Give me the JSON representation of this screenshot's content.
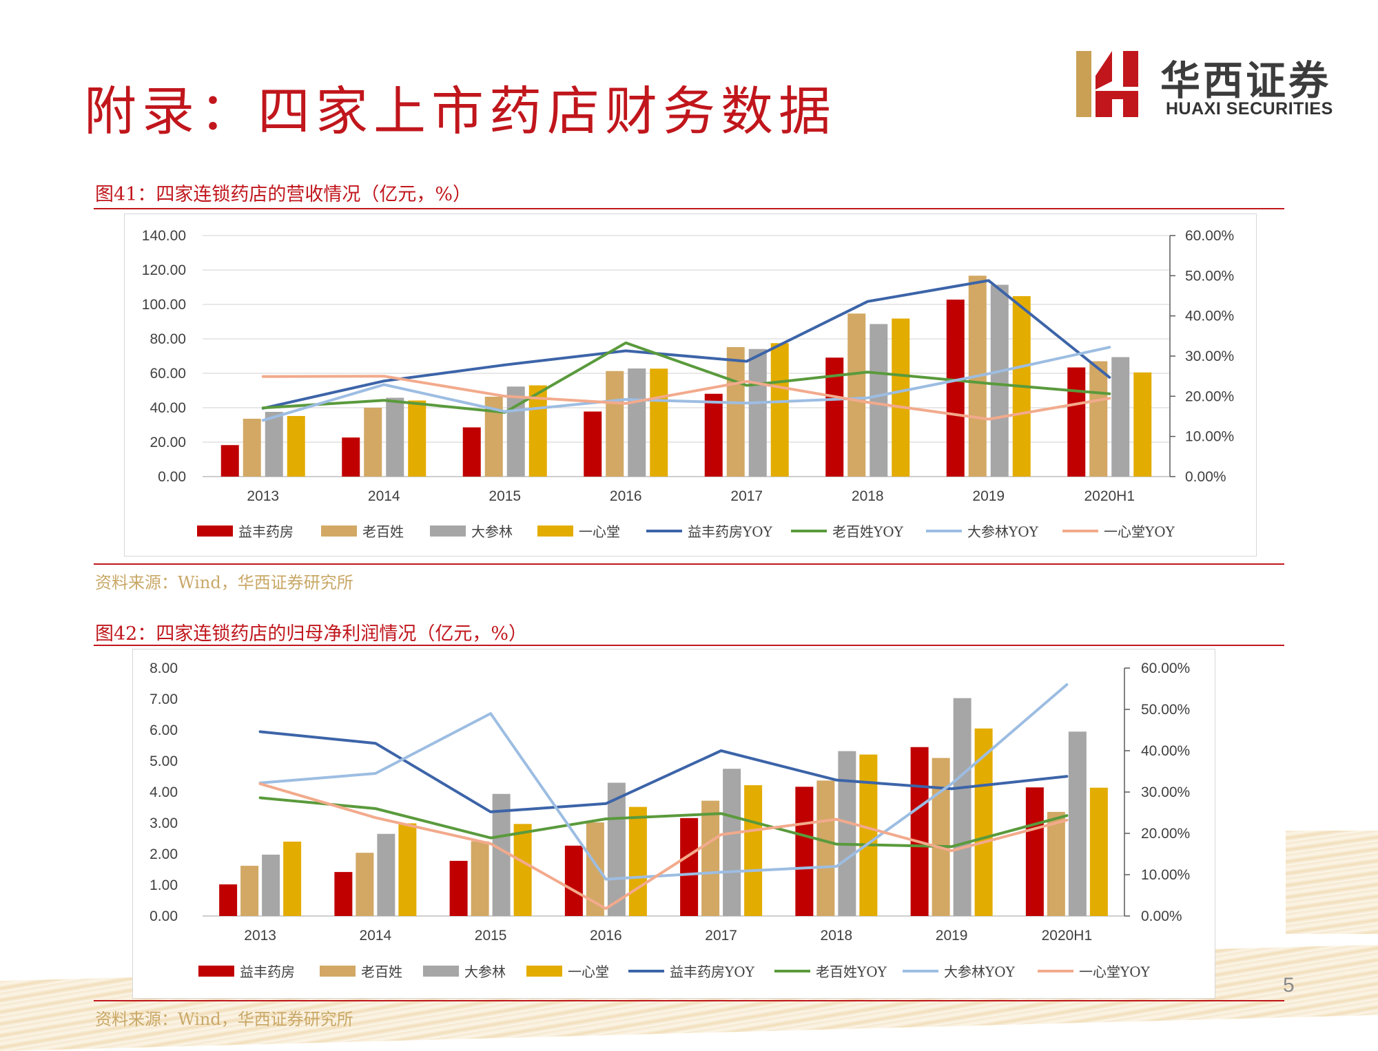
{
  "header": {
    "title": "附录：四家上市药店财务数据",
    "logo_cn": "华西证券",
    "logo_en": "HUAXI SECURITIES"
  },
  "figures": [
    {
      "title": "图41：四家连锁药店的营收情况（亿元，%）",
      "source": "资料来源：Wind，华西证券研究所"
    },
    {
      "title": "图42：四家连锁药店的归母净利润情况（亿元，%）",
      "source": "资料来源：Wind，华西证券研究所"
    }
  ],
  "page_number": "5",
  "colors": {
    "brand_red": "#c0161c",
    "yifeng": "#c00000",
    "laobaixing": "#d2a864",
    "dacanlin": "#a6a6a6",
    "yixintang": "#e3ac00",
    "yifeng_yoy": "#3c64a8",
    "laobaixing_yoy": "#5a9a3c",
    "dacanlin_yoy": "#9dbde2",
    "yixintang_yoy": "#f2aa8c"
  },
  "chart_data": [
    {
      "type": "bar",
      "categories": [
        "2013",
        "2014",
        "2015",
        "2016",
        "2017",
        "2018",
        "2019",
        "2020H1"
      ],
      "ylim": [
        0,
        140
      ],
      "yticks": [
        "0.00",
        "20.00",
        "40.00",
        "60.00",
        "80.00",
        "100.00",
        "120.00",
        "140.00"
      ],
      "y2lim": [
        0,
        60
      ],
      "y2ticks": [
        "0.00%",
        "10.00%",
        "20.00%",
        "30.00%",
        "40.00%",
        "50.00%",
        "60.00%"
      ],
      "legend_position": "bottom",
      "grid": true,
      "series": [
        {
          "name": "益丰药房",
          "values": [
            18.3,
            22.7,
            28.6,
            37.8,
            48.1,
            69.1,
            102.8,
            63.4
          ]
        },
        {
          "name": "老百姓",
          "values": [
            33.6,
            40.0,
            46.4,
            61.3,
            75.2,
            94.7,
            116.7,
            67.0
          ]
        },
        {
          "name": "大参林",
          "values": [
            37.6,
            45.8,
            52.3,
            62.8,
            74.1,
            88.6,
            111.4,
            69.4
          ]
        },
        {
          "name": "一心堂",
          "values": [
            35.2,
            44.2,
            53.0,
            62.7,
            77.5,
            91.8,
            104.8,
            60.5
          ]
        }
      ],
      "line_series": [
        {
          "name": "益丰药房YOY",
          "values": [
            17.0,
            23.8,
            27.8,
            31.3,
            28.7,
            43.6,
            48.8,
            24.7
          ]
        },
        {
          "name": "老百姓YOY",
          "values": [
            17.1,
            19.0,
            16.0,
            33.3,
            22.7,
            26.0,
            23.2,
            20.6
          ]
        },
        {
          "name": "大参林YOY",
          "values": [
            14.0,
            22.9,
            16.2,
            19.2,
            18.3,
            19.6,
            25.6,
            32.2
          ]
        },
        {
          "name": "一心堂YOY",
          "values": [
            24.9,
            25.0,
            20.0,
            18.2,
            23.7,
            18.5,
            14.3,
            19.5
          ]
        }
      ]
    },
    {
      "type": "bar",
      "categories": [
        "2013",
        "2014",
        "2015",
        "2016",
        "2017",
        "2018",
        "2019",
        "2020H1"
      ],
      "ylim": [
        0,
        8
      ],
      "yticks": [
        "0.00",
        "1.00",
        "2.00",
        "3.00",
        "4.00",
        "5.00",
        "6.00",
        "7.00",
        "8.00"
      ],
      "y2lim": [
        0,
        60
      ],
      "y2ticks": [
        "0.00%",
        "10.00%",
        "20.00%",
        "30.00%",
        "40.00%",
        "50.00%",
        "60.00%"
      ],
      "legend_position": "bottom",
      "grid": false,
      "series": [
        {
          "name": "益丰药房",
          "values": [
            1.02,
            1.42,
            1.78,
            2.27,
            3.16,
            4.17,
            5.45,
            4.15
          ]
        },
        {
          "name": "老百姓",
          "values": [
            1.62,
            2.04,
            2.41,
            3.02,
            3.72,
            4.37,
            5.1,
            3.36
          ]
        },
        {
          "name": "大参林",
          "values": [
            1.98,
            2.65,
            3.94,
            4.3,
            4.75,
            5.32,
            7.03,
            5.95
          ]
        },
        {
          "name": "一心堂",
          "values": [
            2.4,
            2.99,
            2.97,
            3.52,
            4.22,
            5.21,
            6.05,
            4.14
          ]
        }
      ],
      "line_series": [
        {
          "name": "益丰药房YOY",
          "values": [
            44.6,
            41.8,
            25.2,
            27.2,
            40.0,
            32.9,
            30.8,
            33.8
          ]
        },
        {
          "name": "老百姓YOY",
          "values": [
            28.6,
            26.0,
            18.9,
            23.5,
            24.8,
            17.4,
            16.8,
            24.3
          ]
        },
        {
          "name": "大参林YOY",
          "values": [
            32.2,
            34.5,
            49.0,
            8.9,
            10.6,
            12.0,
            32.0,
            56.0
          ]
        },
        {
          "name": "一心堂YOY",
          "values": [
            32.0,
            23.8,
            17.5,
            1.8,
            19.7,
            23.4,
            15.8,
            23.2
          ]
        }
      ]
    }
  ]
}
